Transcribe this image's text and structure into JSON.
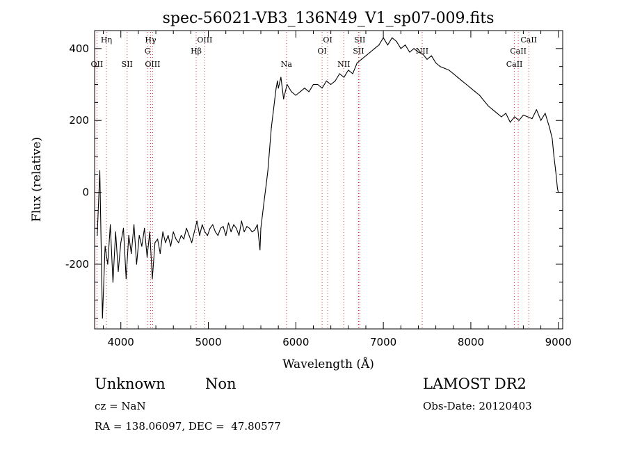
{
  "chart_data": {
    "type": "line",
    "title": "spec-56021-VB3_136N49_V1_sp07-009.fits",
    "xlabel": "Wavelength (Å)",
    "ylabel": "Flux (relative)",
    "xlim": [
      3700,
      9050
    ],
    "ylim": [
      -380,
      450
    ],
    "x_ticks": [
      4000,
      5000,
      6000,
      7000,
      8000,
      9000
    ],
    "y_ticks": [
      -200,
      0,
      200,
      400
    ],
    "grid": false,
    "legend": "none",
    "series": [
      {
        "color": "#000000",
        "x": [
          3730,
          3760,
          3790,
          3820,
          3850,
          3880,
          3910,
          3940,
          3970,
          4000,
          4030,
          4060,
          4090,
          4120,
          4150,
          4180,
          4210,
          4240,
          4270,
          4300,
          4330,
          4360,
          4390,
          4420,
          4450,
          4480,
          4510,
          4540,
          4570,
          4600,
          4630,
          4660,
          4690,
          4720,
          4750,
          4780,
          4810,
          4840,
          4870,
          4900,
          4930,
          4960,
          4990,
          5020,
          5050,
          5080,
          5110,
          5140,
          5170,
          5200,
          5230,
          5260,
          5290,
          5320,
          5350,
          5380,
          5410,
          5440,
          5470,
          5500,
          5530,
          5560,
          5590,
          5600,
          5620,
          5640,
          5660,
          5680,
          5700,
          5720,
          5740,
          5760,
          5775,
          5790,
          5800,
          5830,
          5860,
          5900,
          5950,
          6000,
          6050,
          6100,
          6150,
          6200,
          6250,
          6300,
          6350,
          6400,
          6450,
          6500,
          6550,
          6600,
          6650,
          6700,
          6750,
          6800,
          6850,
          6900,
          6950,
          7000,
          7050,
          7100,
          7150,
          7200,
          7250,
          7300,
          7350,
          7400,
          7450,
          7500,
          7550,
          7600,
          7650,
          7700,
          7750,
          7800,
          7850,
          7900,
          7950,
          8000,
          8050,
          8100,
          8150,
          8200,
          8250,
          8300,
          8350,
          8400,
          8450,
          8500,
          8550,
          8600,
          8650,
          8700,
          8750,
          8800,
          8850,
          8900,
          8930,
          8950,
          8970,
          8990,
          9000
        ],
        "y": [
          -120,
          60,
          -350,
          -150,
          -200,
          -90,
          -250,
          -110,
          -220,
          -140,
          -100,
          -240,
          -120,
          -170,
          -90,
          -200,
          -120,
          -150,
          -100,
          -180,
          -110,
          -240,
          -140,
          -130,
          -170,
          -110,
          -140,
          -120,
          -150,
          -110,
          -130,
          -140,
          -120,
          -130,
          -100,
          -120,
          -140,
          -110,
          -80,
          -120,
          -90,
          -110,
          -120,
          -100,
          -90,
          -110,
          -120,
          -100,
          -95,
          -120,
          -85,
          -110,
          -90,
          -100,
          -120,
          -80,
          -110,
          -95,
          -100,
          -110,
          -105,
          -90,
          -160,
          -100,
          -60,
          -20,
          20,
          60,
          120,
          180,
          220,
          260,
          290,
          310,
          290,
          320,
          260,
          300,
          280,
          270,
          280,
          290,
          280,
          300,
          300,
          290,
          310,
          300,
          310,
          330,
          320,
          340,
          330,
          360,
          370,
          380,
          390,
          400,
          410,
          430,
          410,
          430,
          420,
          400,
          410,
          390,
          400,
          390,
          385,
          370,
          380,
          360,
          350,
          345,
          340,
          330,
          320,
          310,
          300,
          290,
          280,
          270,
          255,
          240,
          230,
          220,
          210,
          220,
          195,
          210,
          200,
          215,
          210,
          205,
          230,
          200,
          220,
          180,
          150,
          100,
          60,
          10,
          0
        ]
      }
    ],
    "line_markers": [
      {
        "label": "Hη",
        "x": 3835,
        "row": 0
      },
      {
        "label": "OII",
        "x": 3727,
        "row": 2
      },
      {
        "label": "SII",
        "x": 4072,
        "row": 2
      },
      {
        "label": "Hγ",
        "x": 4340,
        "row": 0
      },
      {
        "label": "G",
        "x": 4305,
        "row": 1
      },
      {
        "label": "OIII",
        "x": 4363,
        "row": 2
      },
      {
        "label": "OIII",
        "x": 4959,
        "row": 0
      },
      {
        "label": "Hβ",
        "x": 4861,
        "row": 1
      },
      {
        "label": "Na",
        "x": 5893,
        "row": 2
      },
      {
        "label": "OI",
        "x": 6364,
        "row": 0
      },
      {
        "label": "OI",
        "x": 6300,
        "row": 1
      },
      {
        "label": "NII",
        "x": 6548,
        "row": 2
      },
      {
        "label": "SII",
        "x": 6731,
        "row": 0
      },
      {
        "label": "SII",
        "x": 6717,
        "row": 1
      },
      {
        "label": "NII",
        "x": 7444,
        "row": 1
      },
      {
        "label": "CaII",
        "x": 8662,
        "row": 0
      },
      {
        "label": "CaII",
        "x": 8542,
        "row": 1
      },
      {
        "label": "CaII",
        "x": 8498,
        "row": 2
      }
    ]
  },
  "info": {
    "class_text": "Unknown",
    "subclass_text": "Non",
    "survey": "LAMOST DR2",
    "cz": "cz = NaN",
    "obs_date": "Obs-Date: 20120403",
    "coords": "RA = 138.06097, DEC =  47.80577"
  },
  "colors": {
    "spectrum": "#000000",
    "marker_line": "#e03030",
    "axes": "#000000"
  }
}
